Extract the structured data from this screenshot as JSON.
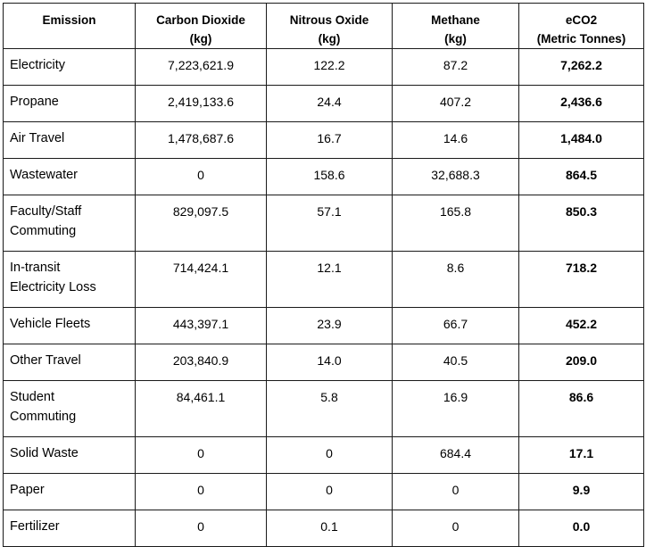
{
  "table": {
    "headers": [
      [
        "Emission",
        ""
      ],
      [
        "Carbon Dioxide",
        "(kg)"
      ],
      [
        "Nitrous Oxide",
        "(kg)"
      ],
      [
        "Methane",
        "(kg)"
      ],
      [
        "eCO2",
        "(Metric Tonnes)"
      ]
    ],
    "rows": [
      {
        "emission": "Electricity",
        "co2": "7,223,621.9",
        "n2o": "122.2",
        "ch4": "87.2",
        "eco2": "7,262.2"
      },
      {
        "emission": "Propane",
        "co2": "2,419,133.6",
        "n2o": "24.4",
        "ch4": "407.2",
        "eco2": "2,436.6"
      },
      {
        "emission": "Air Travel",
        "co2": "1,478,687.6",
        "n2o": "16.7",
        "ch4": "14.6",
        "eco2": "1,484.0"
      },
      {
        "emission": "Wastewater",
        "co2": "0",
        "n2o": "158.6",
        "ch4": "32,688.3",
        "eco2": "864.5"
      },
      {
        "emission": "Faculty/Staff Commuting",
        "co2": "829,097.5",
        "n2o": "57.1",
        "ch4": "165.8",
        "eco2": "850.3"
      },
      {
        "emission": "In-transit Electricity Loss",
        "co2": "714,424.1",
        "n2o": "12.1",
        "ch4": "8.6",
        "eco2": "718.2"
      },
      {
        "emission": "Vehicle Fleets",
        "co2": "443,397.1",
        "n2o": "23.9",
        "ch4": "66.7",
        "eco2": "452.2"
      },
      {
        "emission": "Other Travel",
        "co2": "203,840.9",
        "n2o": "14.0",
        "ch4": "40.5",
        "eco2": "209.0"
      },
      {
        "emission": "Student Commuting",
        "co2": "84,461.1",
        "n2o": "5.8",
        "ch4": "16.9",
        "eco2": "86.6"
      },
      {
        "emission": "Solid Waste",
        "co2": "0",
        "n2o": "0",
        "ch4": "684.4",
        "eco2": "17.1"
      },
      {
        "emission": "Paper",
        "co2": "0",
        "n2o": "0",
        "ch4": "0",
        "eco2": "9.9"
      },
      {
        "emission": "Fertilizer",
        "co2": "0",
        "n2o": "0.1",
        "ch4": "0",
        "eco2": "0.0"
      }
    ]
  }
}
